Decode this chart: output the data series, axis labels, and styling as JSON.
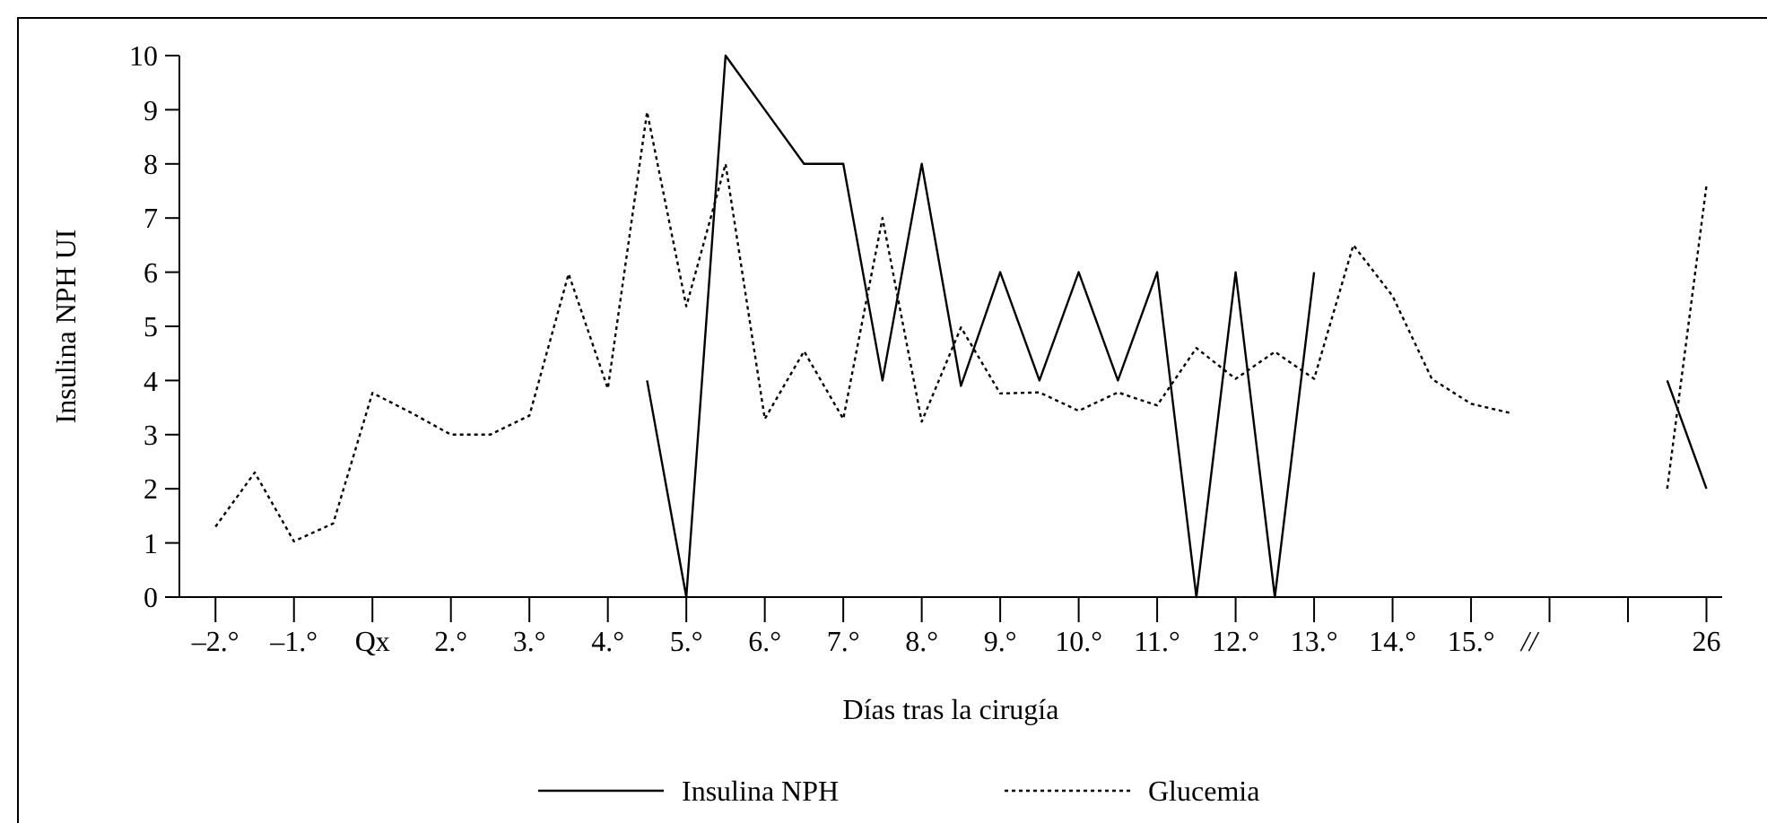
{
  "chart_data": {
    "type": "line",
    "xlabel": "Días tras la cirugía",
    "ylabel": "Insulina NPH UI",
    "ylim": [
      0,
      10
    ],
    "yticks": [
      0,
      1,
      2,
      3,
      4,
      5,
      6,
      7,
      8,
      9,
      10
    ],
    "categories": [
      "–2.°",
      null,
      "–1.°",
      null,
      "Qx",
      null,
      "2.°",
      null,
      "3.°",
      null,
      "4.°",
      null,
      "5.°",
      null,
      "6.°",
      null,
      "7.°",
      null,
      "8.°",
      null,
      "9.°",
      null,
      "10.°",
      null,
      "11.°",
      null,
      "12.°",
      null,
      "13.°",
      null,
      "14.°",
      null,
      "15.°",
      null,
      null,
      null,
      null,
      null,
      "26"
    ],
    "annotations": [
      "//"
    ],
    "grid": false,
    "legend": "bottom",
    "marker": "none",
    "series": [
      {
        "name": "Insulina NPH",
        "color": "#000000",
        "line_style": "solid",
        "values": [
          null,
          null,
          null,
          null,
          null,
          null,
          null,
          null,
          null,
          null,
          null,
          4,
          0,
          10,
          9,
          8,
          8,
          4,
          8,
          3.9,
          6,
          4,
          6,
          4,
          6,
          0,
          6,
          0,
          6,
          null,
          null,
          null,
          null,
          null,
          null,
          null,
          null,
          4,
          2
        ]
      },
      {
        "name": "Glucemia",
        "color": "#000000",
        "line_style": "dotted",
        "values": [
          1.3,
          2.3,
          1.03,
          1.36,
          3.77,
          3.4,
          3,
          3,
          3.35,
          5.97,
          3.85,
          8.96,
          5.37,
          8,
          3.29,
          4.54,
          3.29,
          7,
          3.24,
          4.98,
          3.76,
          3.78,
          3.44,
          3.78,
          3.54,
          4.6,
          4.03,
          4.53,
          4.03,
          6.5,
          5.56,
          4.03,
          3.57,
          3.4,
          null,
          null,
          null,
          2,
          7.6
        ]
      }
    ]
  }
}
